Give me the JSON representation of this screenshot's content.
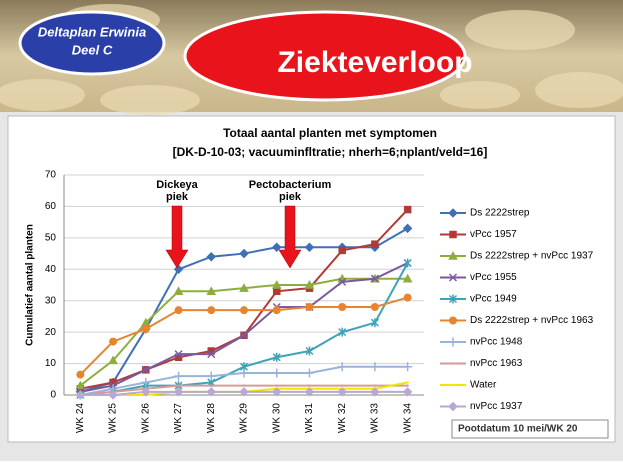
{
  "header": {
    "badge": [
      "Deltaplan Erwinia",
      "Deel C"
    ],
    "title": "Ziekteverloop"
  },
  "chart_data": {
    "type": "line",
    "title": "Totaal aantal planten met symptomen",
    "subtitle": "[DK-D-10-03; vacuuminfltratie; nherh=6;nplant/veld=16]",
    "y_label": "Cumulatief aantal planten",
    "categories": [
      "WK 24",
      "WK 25",
      "WK 26",
      "WK 27",
      "WK 28",
      "WK 29",
      "WK 30",
      "WK 31",
      "WK 32",
      "WK 33",
      "WK 34"
    ],
    "ylim": [
      0,
      70
    ],
    "yticks": [
      0,
      10,
      20,
      30,
      40,
      50,
      60,
      70
    ],
    "grid": true,
    "legend": "right",
    "annotations": [
      {
        "lines": [
          "Dickeya",
          "piek"
        ]
      },
      {
        "lines": [
          "Pectobacterium",
          "piek"
        ]
      }
    ],
    "note": "Pootdatum 10 mei/WK 20",
    "series": [
      {
        "name": "Ds 2222strep",
        "color": "#3f6fb5",
        "marker": "diamond",
        "values": [
          1,
          4,
          21,
          40,
          44,
          45,
          47,
          47,
          47,
          47,
          53
        ]
      },
      {
        "name": "vPcc 1957",
        "color": "#b03a36",
        "marker": "square",
        "values": [
          2,
          4,
          8,
          12,
          14,
          19,
          33,
          34,
          46,
          48,
          59
        ]
      },
      {
        "name": "Ds 2222strep + nvPcc 1937",
        "color": "#8fad3f",
        "marker": "triangle",
        "values": [
          3,
          11,
          23,
          33,
          33,
          34,
          35,
          35,
          37,
          37,
          37
        ]
      },
      {
        "name": "vPcc 1955",
        "color": "#7a5a9e",
        "marker": "x",
        "values": [
          1,
          3,
          8,
          13,
          13,
          19,
          28,
          28,
          36,
          37,
          42
        ]
      },
      {
        "name": "vPcc 1949",
        "color": "#3ea3b8",
        "marker": "star",
        "values": [
          0,
          1,
          3,
          3,
          4,
          9,
          12,
          14,
          20,
          23,
          42
        ]
      },
      {
        "name": "Ds 2222strep + nvPcc 1963",
        "color": "#e8842f",
        "marker": "circle",
        "values": [
          6.5,
          17,
          21,
          27,
          27,
          27,
          27,
          28,
          28,
          28,
          31
        ]
      },
      {
        "name": "nvPcc 1948",
        "color": "#9ab3d8",
        "marker": "plus",
        "values": [
          0,
          2,
          4,
          6,
          6,
          7,
          7,
          7,
          9,
          9,
          9
        ]
      },
      {
        "name": "nvPcc 1963",
        "color": "#d89a94",
        "marker": "none",
        "values": [
          0,
          1,
          2,
          3,
          3,
          3,
          3,
          3,
          3,
          3,
          3
        ]
      },
      {
        "name": "Water",
        "color": "#f2e600",
        "marker": "none",
        "values": [
          0,
          0,
          0,
          1,
          1,
          1,
          2,
          2,
          2,
          2,
          4
        ]
      },
      {
        "name": "nvPcc 1937",
        "color": "#b7a9d3",
        "marker": "diamond",
        "values": [
          0,
          0,
          1,
          1,
          1,
          1,
          1,
          1,
          1,
          1,
          1
        ]
      }
    ]
  }
}
